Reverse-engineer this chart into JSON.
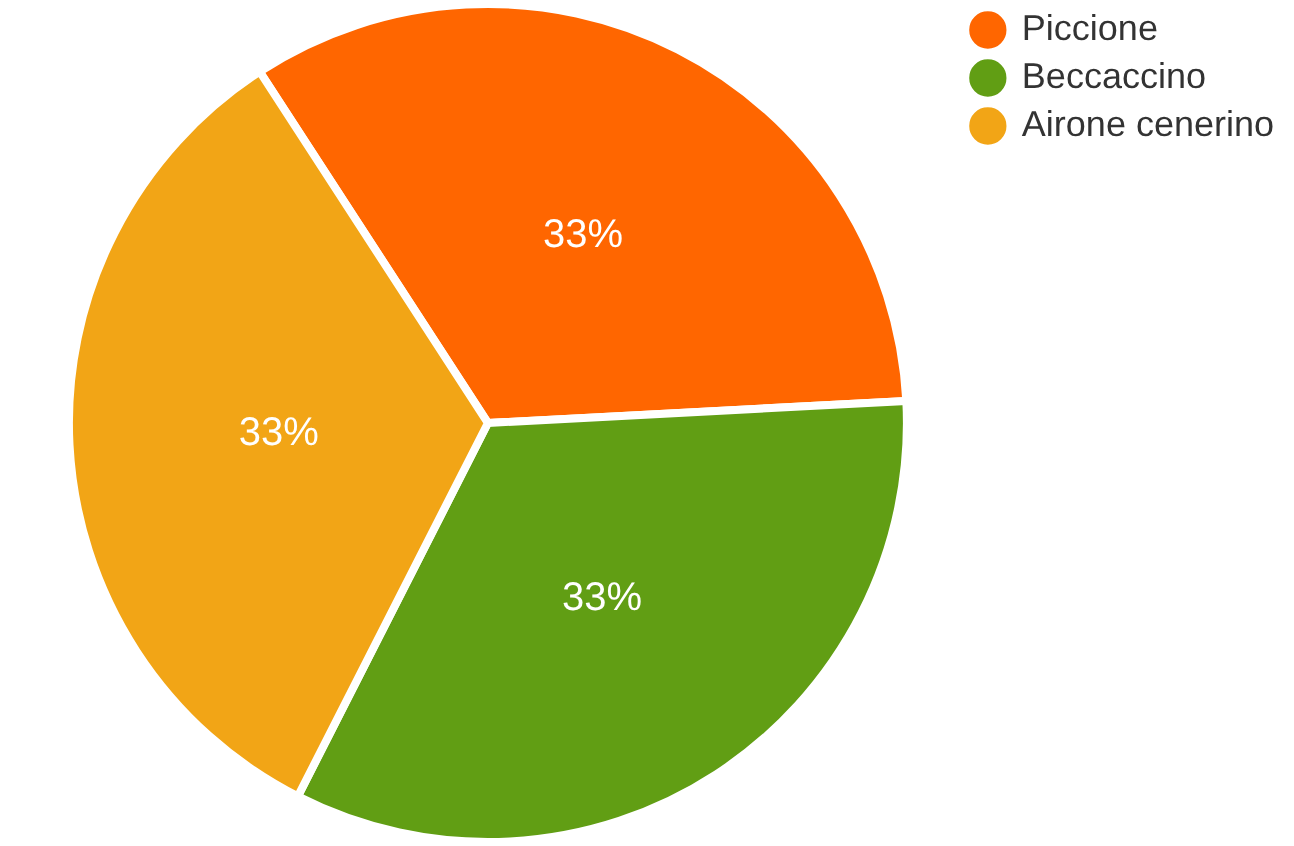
{
  "chart_data": {
    "type": "pie",
    "categories": [
      "Piccione",
      "Beccaccino",
      "Airone cenerino"
    ],
    "values": [
      33.33,
      33.33,
      33.34
    ],
    "value_labels": [
      "33%",
      "33%",
      "33%"
    ],
    "colors": [
      "#ff6600",
      "#619e14",
      "#f2a516"
    ],
    "legend": "top right"
  }
}
